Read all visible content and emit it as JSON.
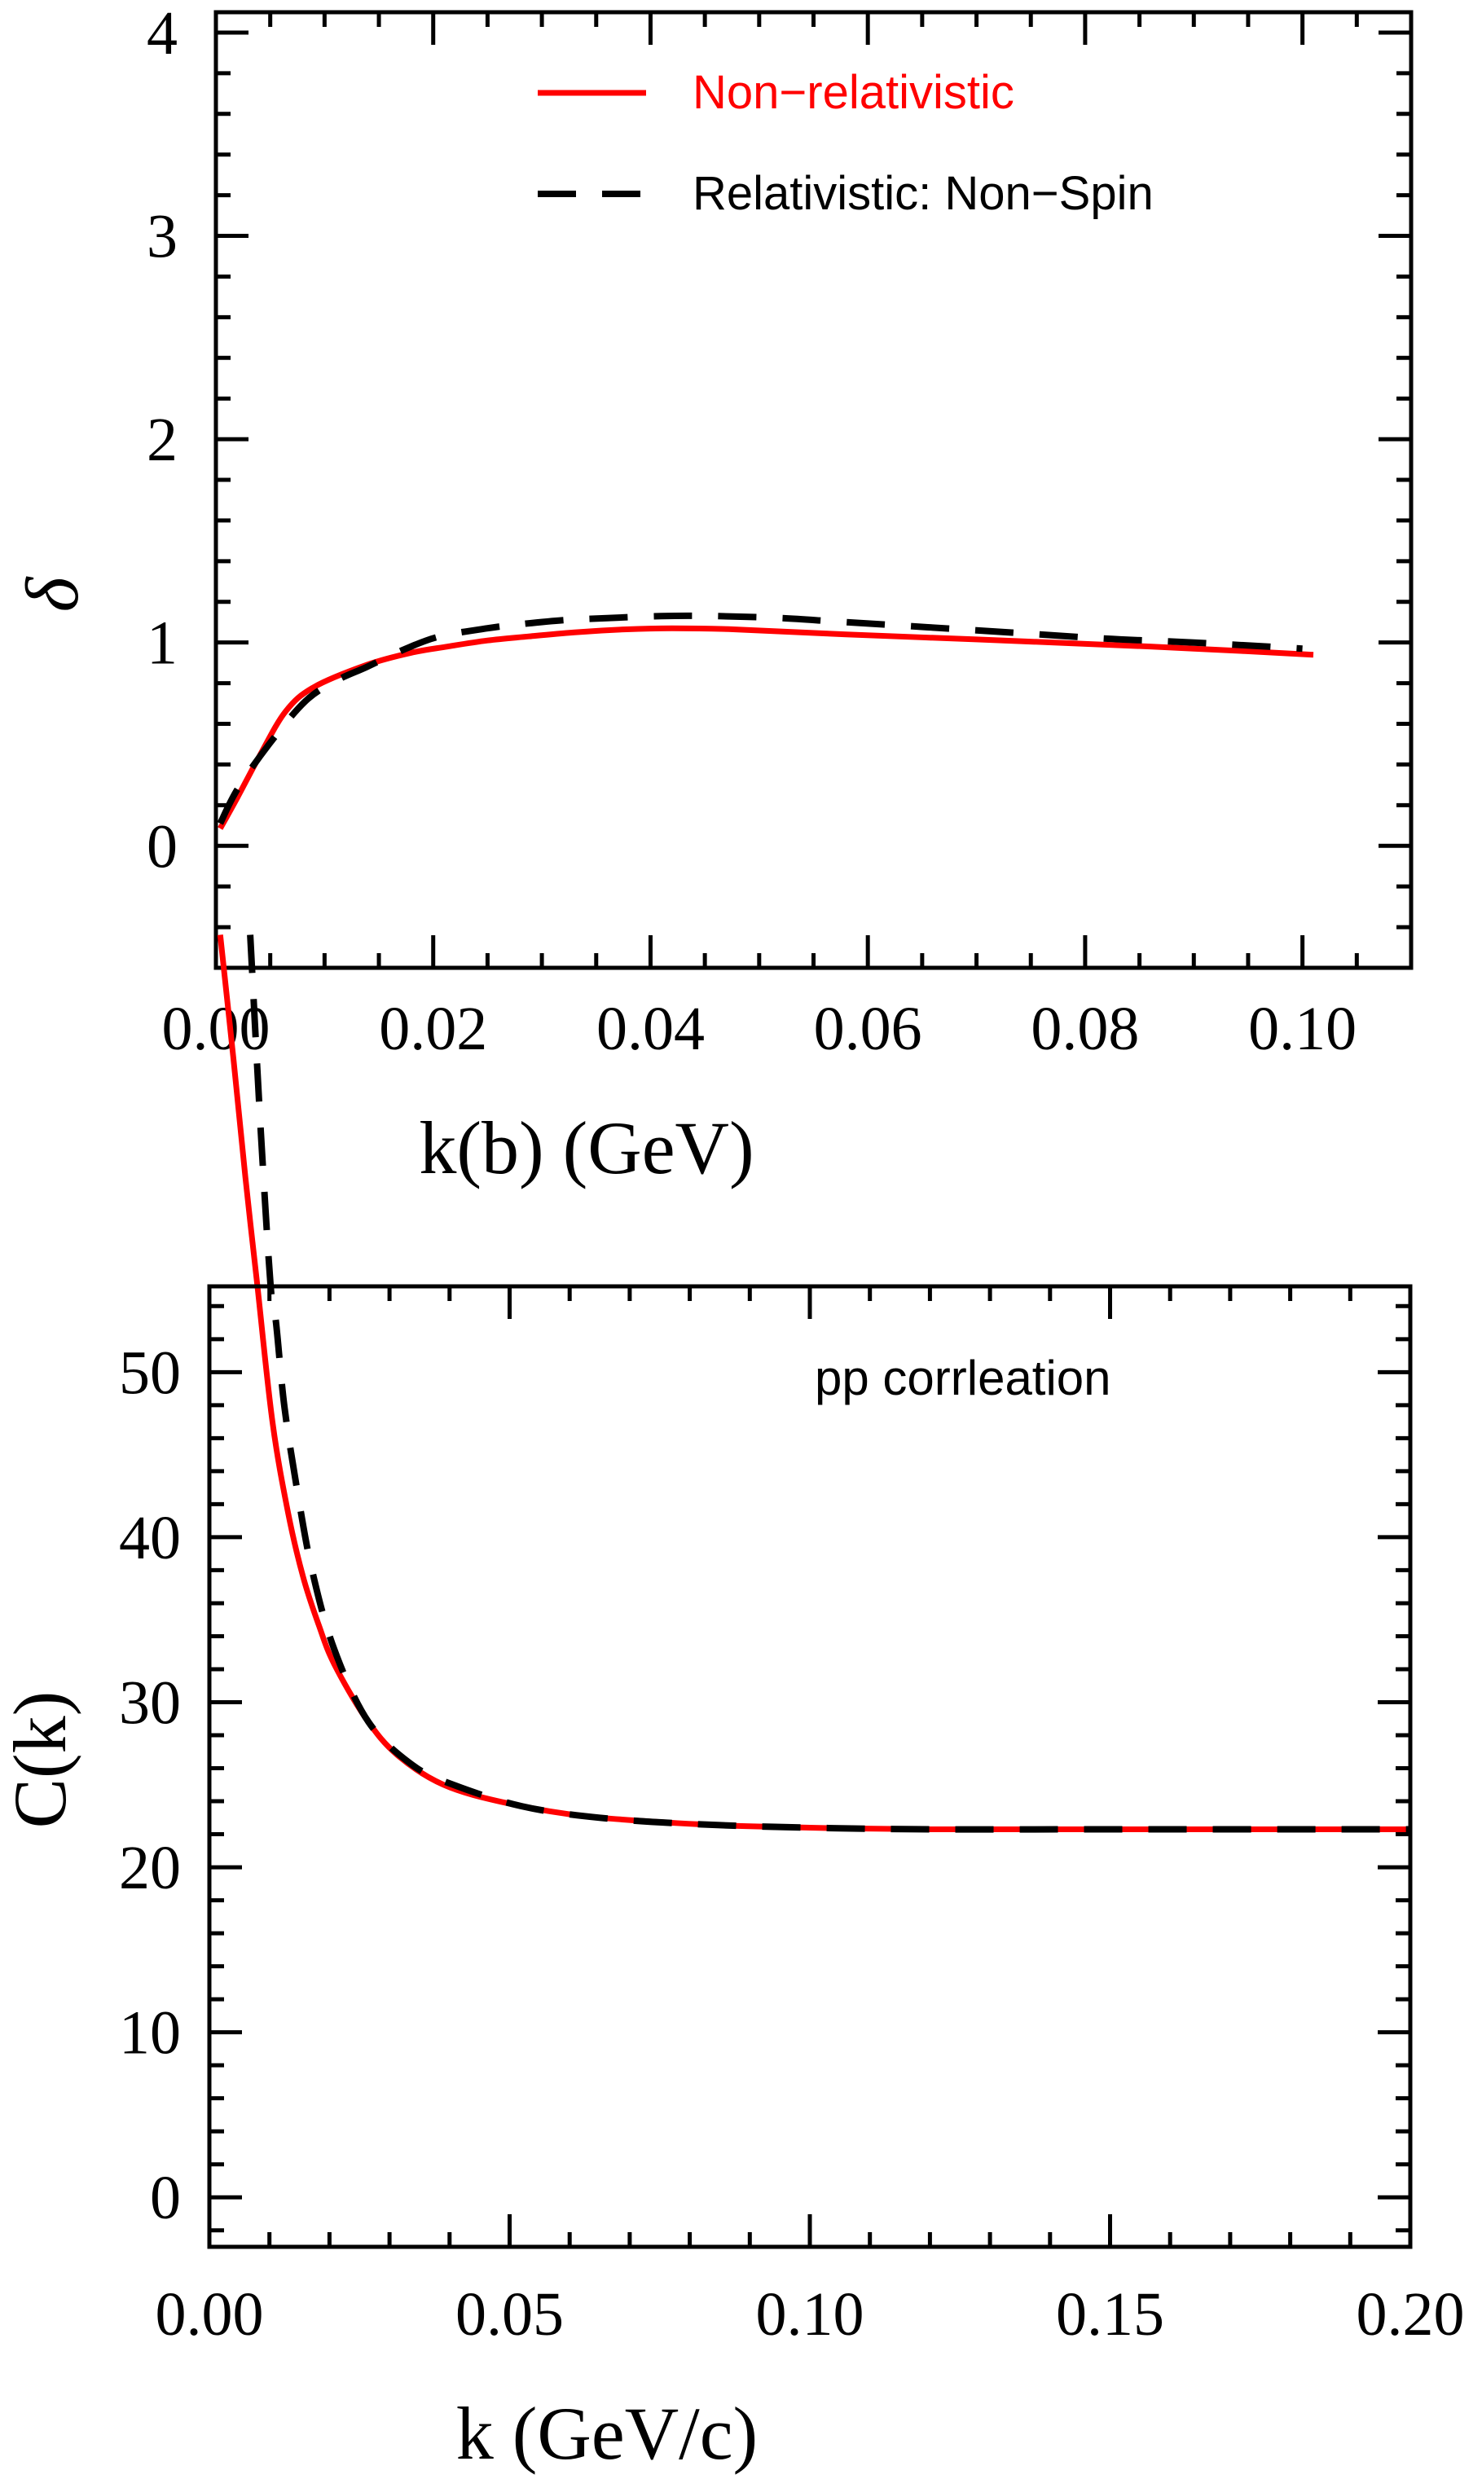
{
  "chart_data": [
    {
      "id": "phase-shift",
      "type": "line",
      "title": "",
      "xlabel": "k(b) (GeV)",
      "ylabel": "δ",
      "xlim": [
        0.0,
        0.11
      ],
      "ylim": [
        -0.6,
        4.1
      ],
      "x_ticks": [
        0.0,
        0.02,
        0.04,
        0.06,
        0.08,
        0.1
      ],
      "x_tick_labels": [
        "0.00",
        "0.02",
        "0.04",
        "0.06",
        "0.08",
        "0.10"
      ],
      "x_minor_step": 0.005,
      "y_ticks": [
        0,
        1,
        2,
        3,
        4
      ],
      "y_tick_labels": [
        "0",
        "1",
        "2",
        "3",
        "4"
      ],
      "y_minor_step": 0.2,
      "grid": false,
      "legend": {
        "position": "top-right",
        "entries": [
          {
            "label": "Non−relativistic",
            "color": "#ff0000",
            "style": "solid"
          },
          {
            "label": "Relativistic: Non−Spin",
            "color": "#000000",
            "style": "dashed"
          }
        ]
      },
      "series": [
        {
          "name": "Non−relativistic",
          "color": "#ff0000",
          "style": "solid",
          "x": [
            0.0004,
            0.002,
            0.004,
            0.0064,
            0.009,
            0.0139,
            0.018,
            0.0213,
            0.025,
            0.0288,
            0.033,
            0.0378,
            0.042,
            0.0476,
            0.058,
            0.07,
            0.0816,
            0.09,
            0.101
          ],
          "y": [
            0.085,
            0.24,
            0.44,
            0.66,
            0.78,
            0.89,
            0.95,
            0.98,
            1.01,
            1.03,
            1.05,
            1.065,
            1.07,
            1.065,
            1.04,
            1.015,
            0.99,
            0.97,
            0.94
          ]
        },
        {
          "name": "Relativistic: Non−Spin",
          "color": "#000000",
          "style": "dashed",
          "x": [
            0.0004,
            0.002,
            0.0049,
            0.0082,
            0.011,
            0.0139,
            0.0175,
            0.0206,
            0.025,
            0.028,
            0.032,
            0.036,
            0.041,
            0.046,
            0.052,
            0.058,
            0.07,
            0.0816,
            0.09,
            0.1
          ],
          "y": [
            0.11,
            0.28,
            0.5,
            0.71,
            0.81,
            0.88,
            0.97,
            1.03,
            1.07,
            1.09,
            1.11,
            1.12,
            1.13,
            1.13,
            1.12,
            1.1,
            1.06,
            1.02,
            1.0,
            0.97
          ]
        }
      ]
    },
    {
      "id": "correlation",
      "type": "line",
      "title": "",
      "xlabel": "k (GeV/c)",
      "ylabel": "C(k)",
      "xlim": [
        0.0,
        0.2
      ],
      "ylim": [
        -3,
        55.2
      ],
      "x_ticks": [
        0.0,
        0.05,
        0.1,
        0.15,
        0.2
      ],
      "x_tick_labels": [
        "0.00",
        "0.05",
        "0.10",
        "0.15",
        "0.20"
      ],
      "x_minor_step": 0.01,
      "y_ticks": [
        0,
        10,
        20,
        30,
        40,
        50
      ],
      "y_tick_labels": [
        "0",
        "10",
        "20",
        "30",
        "40",
        "50"
      ],
      "y_minor_step": 2,
      "grid": false,
      "annotations": [
        {
          "text": "pp corrleation",
          "position": "top-right"
        }
      ],
      "series": [
        {
          "name": "Non−relativistic",
          "color": "#ff0000",
          "style": "solid",
          "x": [
            0.0018,
            0.004,
            0.006,
            0.008,
            0.0105,
            0.0131,
            0.0156,
            0.0182,
            0.0208,
            0.0261,
            0.0313,
            0.039,
            0.0494,
            0.0625,
            0.0817,
            0.1,
            0.12,
            0.15,
            0.2
          ],
          "y": [
            76.5,
            69.0,
            61.8,
            55.2,
            47.0,
            41.5,
            37.6,
            34.7,
            32.3,
            29.0,
            26.8,
            25.0,
            23.9,
            23.1,
            22.6,
            22.4,
            22.3,
            22.3,
            22.3
          ]
        },
        {
          "name": "Relativistic: Non−Spin",
          "color": "#000000",
          "style": "dashed",
          "x": [
            0.0068,
            0.0085,
            0.0102,
            0.0111,
            0.0125,
            0.0146,
            0.0171,
            0.0208,
            0.0265,
            0.0338,
            0.0406,
            0.052,
            0.065,
            0.0817,
            0.1,
            0.12,
            0.15,
            0.2
          ],
          "y": [
            76.5,
            65.0,
            55.2,
            53.0,
            47.9,
            42.9,
            38.0,
            33.2,
            28.8,
            26.2,
            25.0,
            23.7,
            23.0,
            22.6,
            22.4,
            22.3,
            22.3,
            22.3
          ]
        }
      ]
    }
  ]
}
